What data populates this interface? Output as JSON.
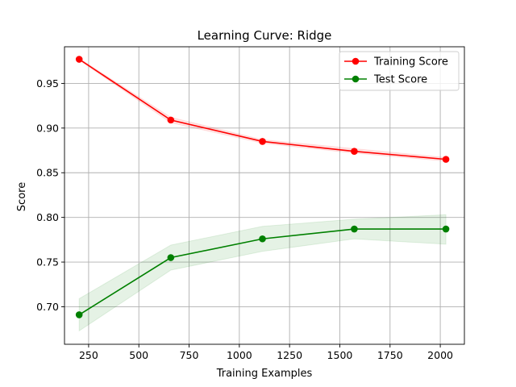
{
  "chart_data": {
    "type": "line",
    "title": "Learning Curve: Ridge",
    "xlabel": "Training Examples",
    "ylabel": "Score",
    "xlim": [
      130,
      2120
    ],
    "ylim": [
      0.658,
      0.991
    ],
    "xticks": [
      250,
      500,
      750,
      1000,
      1250,
      1500,
      1750,
      2000
    ],
    "yticks": [
      0.7,
      0.75,
      0.8,
      0.85,
      0.9,
      0.95
    ],
    "grid": true,
    "legend": "top-right",
    "x": [
      203,
      659,
      1115,
      1572,
      2028
    ],
    "series": [
      {
        "name": "Training Score",
        "color": "#ff0000",
        "band_color": "#ff0000",
        "values": [
          0.977,
          0.909,
          0.885,
          0.874,
          0.865
        ],
        "lower": [
          0.976,
          0.906,
          0.883,
          0.872,
          0.863
        ],
        "upper": [
          0.978,
          0.912,
          0.887,
          0.877,
          0.867
        ]
      },
      {
        "name": "Test Score",
        "color": "#008000",
        "band_color": "#008000",
        "values": [
          0.691,
          0.755,
          0.776,
          0.787,
          0.787
        ],
        "lower": [
          0.673,
          0.741,
          0.762,
          0.776,
          0.77
        ],
        "upper": [
          0.709,
          0.769,
          0.79,
          0.798,
          0.803
        ]
      }
    ]
  }
}
